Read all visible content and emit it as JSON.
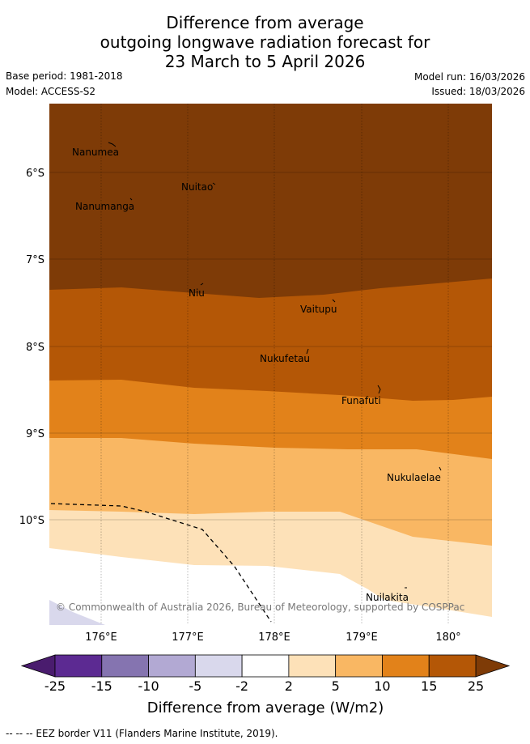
{
  "header": {
    "title_line1": "Difference from average",
    "title_line2": "outgoing longwave radiation forecast for",
    "title_line3": "23 March to 5 April 2026",
    "base_period": "Base period: 1981-2018",
    "model": "Model: ACCESS-S2",
    "model_run": "Model run: 16/03/2026",
    "issued": "Issued: 18/03/2026"
  },
  "map": {
    "lat_labels": [
      "6°S",
      "7°S",
      "8°S",
      "9°S",
      "10°S"
    ],
    "lon_labels": [
      "176°E",
      "177°E",
      "178°E",
      "179°E",
      "180°"
    ],
    "places": [
      "Nanumea",
      "Nuitao",
      "Nanumanga",
      "Niu",
      "Vaitupu",
      "Nukufetau",
      "Funafuti",
      "Nukulaelae",
      "Nuilakita"
    ],
    "copyright": "© Commonwealth of Australia 2026, Bureau of Meteorology, supported by COSPPac"
  },
  "legend": {
    "tick_labels": [
      "-25",
      "-15",
      "-10",
      "-5",
      "-2",
      "2",
      "5",
      "10",
      "15",
      "25"
    ],
    "colors": [
      "#4a1c6e",
      "#5c2a92",
      "#8574b0",
      "#b2a9d3",
      "#d9d8ec",
      "#ffffff",
      "#fde1b8",
      "#f9b763",
      "#e2821a",
      "#b45706",
      "#7e3b07"
    ],
    "axis_label": "Difference from average (W/m2)"
  },
  "footer": {
    "eez_note": "--  --  -- EEZ border V11 (Flanders Marine Institute, 2019)."
  }
}
